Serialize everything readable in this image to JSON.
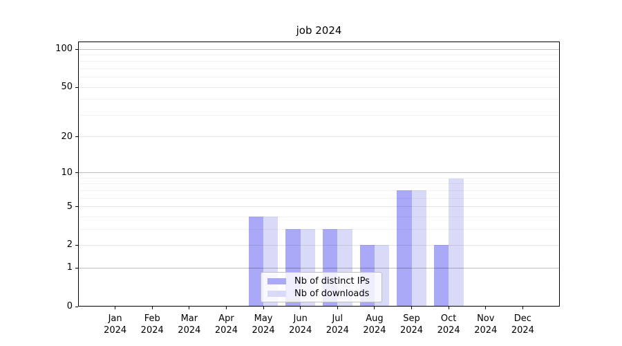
{
  "chart_data": {
    "type": "bar",
    "title": "job 2024",
    "categories": [
      "Jan",
      "Feb",
      "Mar",
      "Apr",
      "May",
      "Jun",
      "Jul",
      "Aug",
      "Sep",
      "Oct",
      "Nov",
      "Dec"
    ],
    "year_label": "2024",
    "series": [
      {
        "key": "distinct-ips",
        "name": "Nb of distinct IPs",
        "color": "#a9a9f8",
        "values": [
          0,
          0,
          0,
          0,
          4,
          3,
          3,
          2,
          7,
          2,
          0,
          0
        ]
      },
      {
        "key": "downloads",
        "name": "Nb of downloads",
        "color": "#d9d9f8",
        "values": [
          0,
          0,
          0,
          0,
          4,
          3,
          3,
          2,
          7,
          9,
          0,
          0
        ]
      }
    ],
    "yticks": [
      0,
      1,
      2,
      5,
      10,
      20,
      50,
      100
    ],
    "minor_yticks": [
      3,
      4,
      6,
      7,
      8,
      9,
      30,
      40,
      60,
      70,
      80,
      90
    ],
    "decade_ticks": [
      1,
      10,
      100
    ],
    "scale": "log1p",
    "ylim": [
      0,
      115
    ],
    "grid": true,
    "legend_position": "inside-bottom-center-left"
  }
}
